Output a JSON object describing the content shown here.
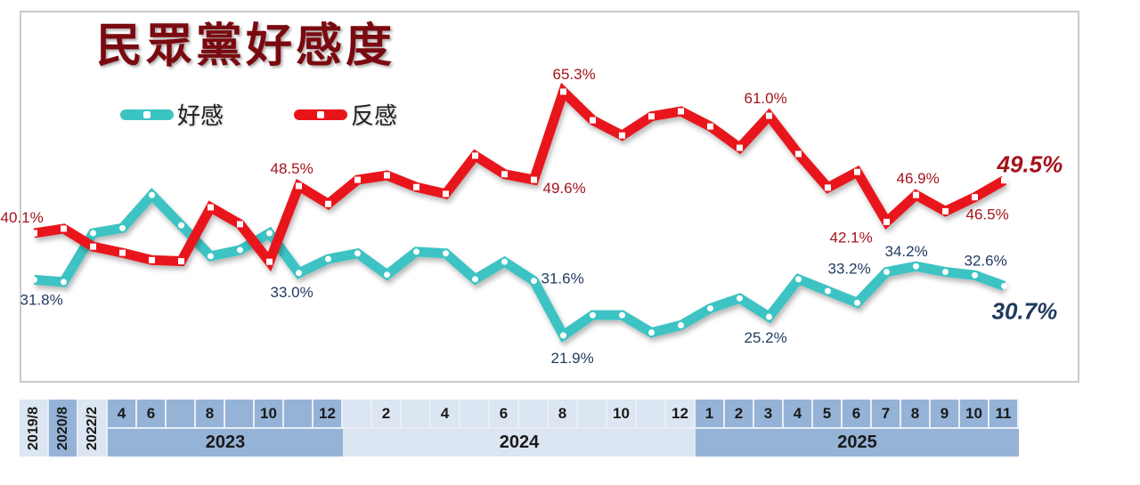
{
  "title": "民眾黨好感度",
  "legend": {
    "favorable": {
      "label": "好感",
      "color": "#3cc3c3"
    },
    "unfavorable": {
      "label": "反感",
      "color": "#e8141a"
    }
  },
  "colors": {
    "favorable_line": "#3cc3c3",
    "unfavorable_line": "#e8141a",
    "favorable_label": "#1f3a5f",
    "unfavorable_label": "#a3141c",
    "axis_dark": "#95b3d7",
    "axis_light": "#dce6f2"
  },
  "axis": {
    "single_columns": [
      "2019/8",
      "2020/8",
      "2022/2"
    ],
    "groups": [
      {
        "year": "2023",
        "months": [
          "4",
          "",
          "6",
          "",
          "8",
          "",
          "10",
          "",
          "12"
        ],
        "shade": "dark"
      },
      {
        "year": "2024",
        "months": [
          "",
          "2",
          "",
          "4",
          "",
          "6",
          "",
          "8",
          "",
          "10",
          "",
          "12"
        ],
        "shade": "light"
      },
      {
        "year": "2025",
        "months": [
          "1",
          "2",
          "3",
          "4",
          "5",
          "6",
          "7",
          "8",
          "9",
          "10",
          "11"
        ],
        "shade": "dark"
      }
    ]
  },
  "chart_data": {
    "type": "line",
    "title": "民眾黨好感度",
    "xlabel": "",
    "ylabel": "",
    "categories": [
      "2019/8",
      "2020/8",
      "2022/2",
      "2023/4",
      "2023/6",
      "2023/7",
      "2023/8",
      "2023/9",
      "2023/10",
      "2023/12",
      "2024/1",
      "2024/2",
      "2024/3",
      "2024/4",
      "2024/5",
      "2024/6",
      "2024/7",
      "2024/8",
      "2024/9",
      "2024/10",
      "2024/11",
      "2024/12",
      "2025/1",
      "2025/2",
      "2025/3",
      "2025/4",
      "2025/5",
      "2025/6",
      "2025/7",
      "2025/8",
      "2025/9",
      "2025/10",
      "2025/11",
      "2025/11b"
    ],
    "series": [
      {
        "name": "好感",
        "color": "#3cc3c3",
        "values": [
          31.8,
          31.4,
          40.1,
          41.0,
          46.9,
          41.5,
          36.0,
          37.1,
          40.1,
          33.0,
          35.5,
          36.5,
          32.7,
          36.8,
          36.5,
          31.9,
          35.0,
          31.6,
          21.9,
          25.5,
          25.5,
          22.4,
          23.7,
          26.7,
          28.5,
          25.2,
          31.9,
          29.8,
          27.7,
          33.2,
          34.2,
          33.2,
          32.6,
          30.7
        ]
      },
      {
        "name": "反感",
        "color": "#e8141a",
        "values": [
          40.1,
          40.9,
          37.7,
          36.6,
          35.3,
          35.1,
          44.7,
          41.7,
          35.0,
          48.5,
          45.3,
          49.6,
          50.4,
          48.3,
          47.1,
          53.9,
          50.6,
          49.6,
          65.3,
          60.2,
          57.5,
          60.9,
          61.8,
          59.1,
          55.3,
          61.0,
          54.2,
          48.2,
          51.0,
          42.1,
          46.9,
          44.0,
          46.5,
          49.5
        ]
      }
    ],
    "annotations": [
      {
        "series": "反感",
        "index": 0,
        "text": "40.1%"
      },
      {
        "series": "反感",
        "index": 9,
        "text": "48.5%"
      },
      {
        "series": "反感",
        "index": 17,
        "text": "49.6%"
      },
      {
        "series": "反感",
        "index": 18,
        "text": "65.3%"
      },
      {
        "series": "反感",
        "index": 25,
        "text": "61.0%"
      },
      {
        "series": "反感",
        "index": 29,
        "text": "42.1%"
      },
      {
        "series": "反感",
        "index": 30,
        "text": "46.9%"
      },
      {
        "series": "反感",
        "index": 32,
        "text": "46.5%"
      },
      {
        "series": "反感",
        "index": 33,
        "text": "49.5%"
      },
      {
        "series": "好感",
        "index": 0,
        "text": "31.8%"
      },
      {
        "series": "好感",
        "index": 9,
        "text": "33.0%"
      },
      {
        "series": "好感",
        "index": 17,
        "text": "31.6%"
      },
      {
        "series": "好感",
        "index": 18,
        "text": "21.9%"
      },
      {
        "series": "好感",
        "index": 25,
        "text": "25.2%"
      },
      {
        "series": "好感",
        "index": 29,
        "text": "33.2%"
      },
      {
        "series": "好感",
        "index": 30,
        "text": "34.2%"
      },
      {
        "series": "好感",
        "index": 32,
        "text": "32.6%"
      },
      {
        "series": "好感",
        "index": 33,
        "text": "30.7%"
      }
    ],
    "ylim": [
      15,
      75
    ],
    "grid": false,
    "legend_position": "top-left"
  }
}
